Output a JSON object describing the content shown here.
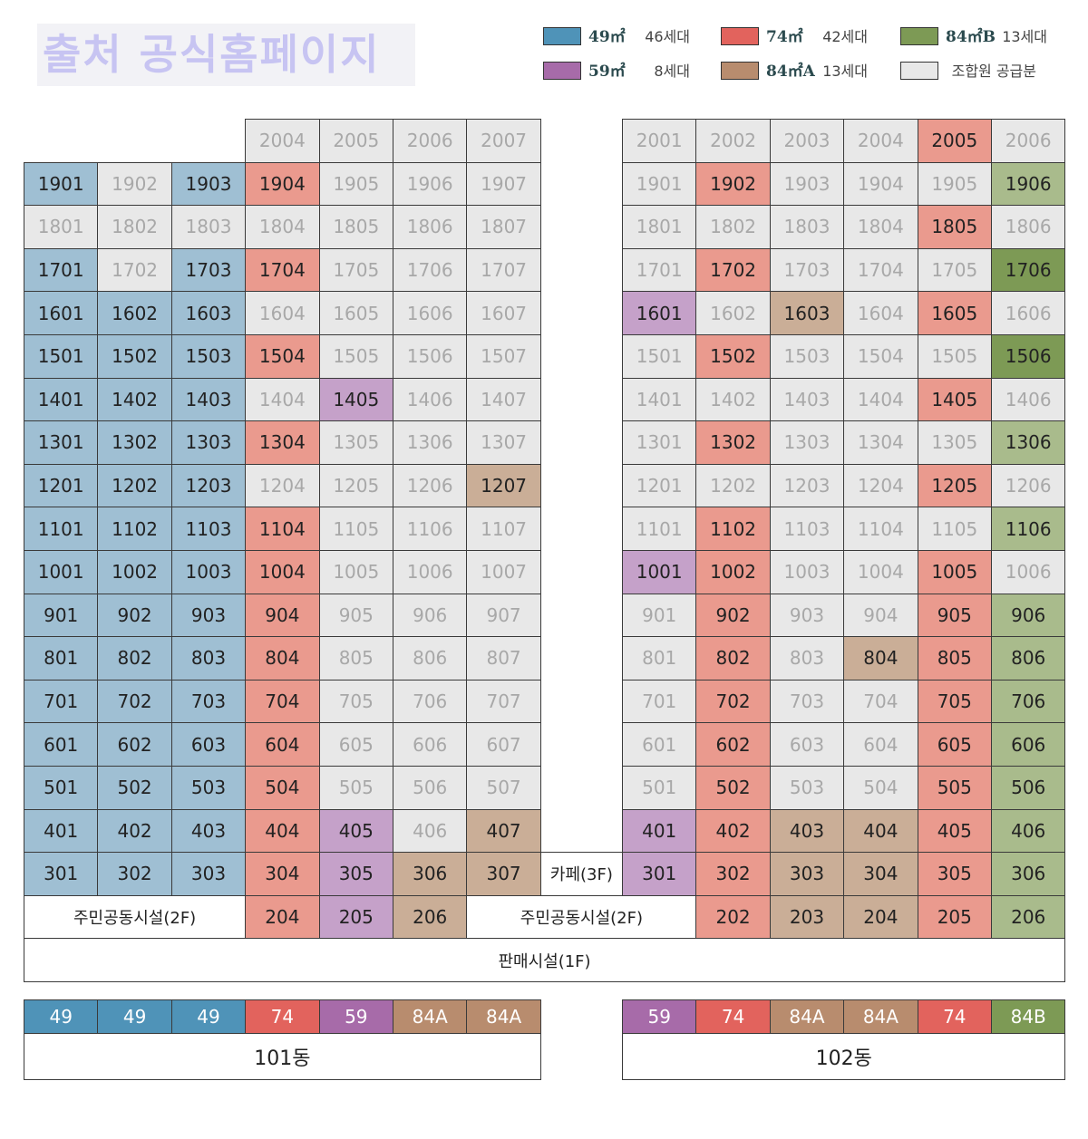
{
  "source_badge": "출처 공식홈페이지",
  "legend": [
    {
      "size": "49㎡",
      "count": "46세대",
      "color": "#4f93b8"
    },
    {
      "size": "74㎡",
      "count": "42세대",
      "color": "#e2635d"
    },
    {
      "size": "84㎡B",
      "count": "13세대",
      "color": "#7d9a55"
    },
    {
      "size": "59㎡",
      "count": "8세대",
      "color": "#a76ba9"
    },
    {
      "size": "84㎡A",
      "count": "13세대",
      "color": "#b88c6e"
    },
    {
      "size": "",
      "count": "조합원 공급분",
      "color": "#e8e8e8"
    }
  ],
  "building101": {
    "name": "101동",
    "type_bar": [
      "49",
      "49",
      "49",
      "74",
      "59",
      "84A",
      "84A"
    ],
    "rows": [
      [
        null,
        null,
        null,
        "2004",
        "2005",
        "2006",
        "2007"
      ],
      [
        "1901",
        "1902",
        "1903",
        "1904",
        "1905",
        "1906",
        "1907"
      ],
      [
        "1801",
        "1802",
        "1803",
        "1804",
        "1805",
        "1806",
        "1807"
      ],
      [
        "1701",
        "1702",
        "1703",
        "1704",
        "1705",
        "1706",
        "1707"
      ],
      [
        "1601",
        "1602",
        "1603",
        "1604",
        "1605",
        "1606",
        "1607"
      ],
      [
        "1501",
        "1502",
        "1503",
        "1504",
        "1505",
        "1506",
        "1507"
      ],
      [
        "1401",
        "1402",
        "1403",
        "1404",
        "1405",
        "1406",
        "1407"
      ],
      [
        "1301",
        "1302",
        "1303",
        "1304",
        "1305",
        "1306",
        "1307"
      ],
      [
        "1201",
        "1202",
        "1203",
        "1204",
        "1205",
        "1206",
        "1207"
      ],
      [
        "1101",
        "1102",
        "1103",
        "1104",
        "1105",
        "1106",
        "1107"
      ],
      [
        "1001",
        "1002",
        "1003",
        "1004",
        "1005",
        "1006",
        "1007"
      ],
      [
        "901",
        "902",
        "903",
        "904",
        "905",
        "906",
        "907"
      ],
      [
        "801",
        "802",
        "803",
        "804",
        "805",
        "806",
        "807"
      ],
      [
        "701",
        "702",
        "703",
        "704",
        "705",
        "706",
        "707"
      ],
      [
        "601",
        "602",
        "603",
        "604",
        "605",
        "606",
        "607"
      ],
      [
        "501",
        "502",
        "503",
        "504",
        "505",
        "506",
        "507"
      ],
      [
        "401",
        "402",
        "403",
        "404",
        "405",
        "406",
        "407"
      ],
      [
        "301",
        "302",
        "303",
        "304",
        "305",
        "306",
        "307"
      ],
      [
        null,
        null,
        null,
        "204",
        "205",
        "206",
        null
      ]
    ],
    "types": [
      [
        "",
        "",
        "",
        "-",
        "-",
        "-",
        "-"
      ],
      [
        "49",
        "-",
        "49",
        "74",
        "-",
        "-",
        "-"
      ],
      [
        "-",
        "-",
        "-",
        "-",
        "-",
        "-",
        "-"
      ],
      [
        "49",
        "-",
        "49",
        "74",
        "-",
        "-",
        "-"
      ],
      [
        "49",
        "49",
        "49",
        "-",
        "-",
        "-",
        "-"
      ],
      [
        "49",
        "49",
        "49",
        "74",
        "-",
        "-",
        "-"
      ],
      [
        "49",
        "49",
        "49",
        "-",
        "59",
        "-",
        "-"
      ],
      [
        "49",
        "49",
        "49",
        "74",
        "-",
        "-",
        "-"
      ],
      [
        "49",
        "49",
        "49",
        "-",
        "-",
        "-",
        "84A"
      ],
      [
        "49",
        "49",
        "49",
        "74",
        "-",
        "-",
        "-"
      ],
      [
        "49",
        "49",
        "49",
        "74",
        "-",
        "-",
        "-"
      ],
      [
        "49",
        "49",
        "49",
        "74",
        "-",
        "-",
        "-"
      ],
      [
        "49",
        "49",
        "49",
        "74",
        "-",
        "-",
        "-"
      ],
      [
        "49",
        "49",
        "49",
        "74",
        "-",
        "-",
        "-"
      ],
      [
        "49",
        "49",
        "49",
        "74",
        "-",
        "-",
        "-"
      ],
      [
        "49",
        "49",
        "49",
        "74",
        "-",
        "-",
        "-"
      ],
      [
        "49",
        "49",
        "49",
        "74",
        "59",
        "-",
        "84A"
      ],
      [
        "49",
        "49",
        "49",
        "74",
        "59",
        "84A",
        "84A"
      ],
      [
        "",
        "",
        "",
        "74",
        "59",
        "84A",
        ""
      ]
    ],
    "community_label": "주민공동시설(2F)"
  },
  "building102": {
    "name": "102동",
    "type_bar": [
      "59",
      "74",
      "84A",
      "84A",
      "74",
      "84B"
    ],
    "rows": [
      [
        "2001",
        "2002",
        "2003",
        "2004",
        "2005",
        "2006"
      ],
      [
        "1901",
        "1902",
        "1903",
        "1904",
        "1905",
        "1906"
      ],
      [
        "1801",
        "1802",
        "1803",
        "1804",
        "1805",
        "1806"
      ],
      [
        "1701",
        "1702",
        "1703",
        "1704",
        "1705",
        "1706"
      ],
      [
        "1601",
        "1602",
        "1603",
        "1604",
        "1605",
        "1606"
      ],
      [
        "1501",
        "1502",
        "1503",
        "1504",
        "1505",
        "1506"
      ],
      [
        "1401",
        "1402",
        "1403",
        "1404",
        "1405",
        "1406"
      ],
      [
        "1301",
        "1302",
        "1303",
        "1304",
        "1305",
        "1306"
      ],
      [
        "1201",
        "1202",
        "1203",
        "1204",
        "1205",
        "1206"
      ],
      [
        "1101",
        "1102",
        "1103",
        "1104",
        "1105",
        "1106"
      ],
      [
        "1001",
        "1002",
        "1003",
        "1004",
        "1005",
        "1006"
      ],
      [
        "901",
        "902",
        "903",
        "904",
        "905",
        "906"
      ],
      [
        "801",
        "802",
        "803",
        "804",
        "805",
        "806"
      ],
      [
        "701",
        "702",
        "703",
        "704",
        "705",
        "706"
      ],
      [
        "601",
        "602",
        "603",
        "604",
        "605",
        "606"
      ],
      [
        "501",
        "502",
        "503",
        "504",
        "505",
        "506"
      ],
      [
        "401",
        "402",
        "403",
        "404",
        "405",
        "406"
      ],
      [
        "301",
        "302",
        "303",
        "304",
        "305",
        "306"
      ],
      [
        null,
        "202",
        "203",
        "204",
        "205",
        "206"
      ]
    ],
    "types": [
      [
        "-",
        "-",
        "-",
        "-",
        "74",
        "-"
      ],
      [
        "-",
        "74",
        "-",
        "-",
        "-",
        "84B"
      ],
      [
        "-",
        "-",
        "-",
        "-",
        "74",
        "-"
      ],
      [
        "-",
        "74",
        "-",
        "-",
        "-",
        "84Bd"
      ],
      [
        "59",
        "-",
        "84A",
        "-",
        "74",
        "-"
      ],
      [
        "-",
        "74",
        "-",
        "-",
        "-",
        "84Bd"
      ],
      [
        "-",
        "-",
        "-",
        "-",
        "74",
        "-"
      ],
      [
        "-",
        "74",
        "-",
        "-",
        "-",
        "84B"
      ],
      [
        "-",
        "-",
        "-",
        "-",
        "74",
        "-"
      ],
      [
        "-",
        "74",
        "-",
        "-",
        "-",
        "84B"
      ],
      [
        "59",
        "74",
        "-",
        "-",
        "74",
        "-"
      ],
      [
        "-",
        "74",
        "-",
        "-",
        "74",
        "84B"
      ],
      [
        "-",
        "74",
        "-",
        "84A",
        "74",
        "84B"
      ],
      [
        "-",
        "74",
        "-",
        "-",
        "74",
        "84B"
      ],
      [
        "-",
        "74",
        "-",
        "-",
        "74",
        "84B"
      ],
      [
        "-",
        "74",
        "-",
        "-",
        "74",
        "84B"
      ],
      [
        "59",
        "74",
        "84A",
        "84A",
        "74",
        "84B"
      ],
      [
        "59",
        "74",
        "84A",
        "84A",
        "74",
        "84B"
      ],
      [
        "",
        "74",
        "84A",
        "84A",
        "74",
        "84B"
      ]
    ],
    "cafe_label": "카페(3F)",
    "community_label": "주민공동시설(2F)"
  },
  "retail_label": "판매시설(1F)"
}
